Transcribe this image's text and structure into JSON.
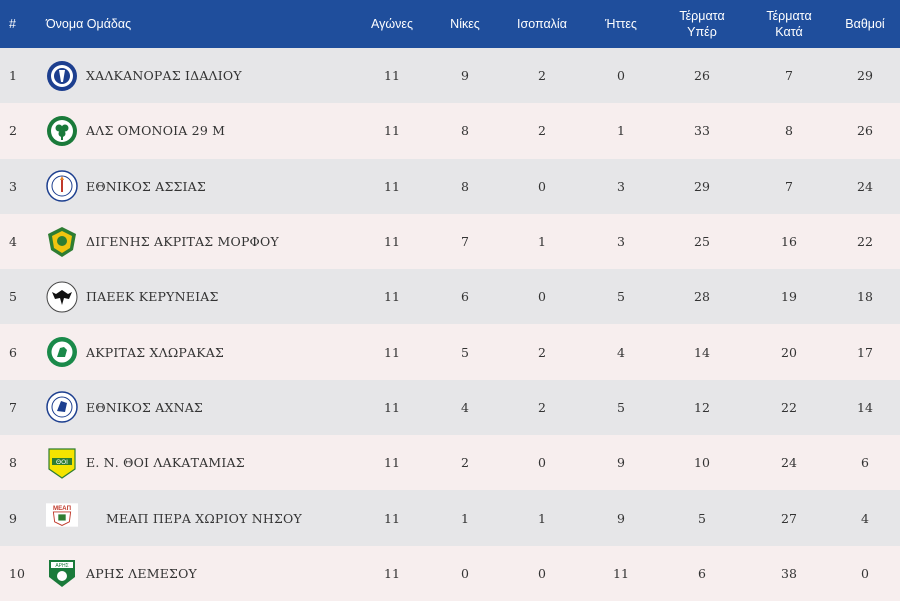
{
  "headers": {
    "rank": "#",
    "team": "Όνομα Ομάδας",
    "played": "Αγώνες",
    "wins": "Νίκες",
    "draws": "Ισοπαλία",
    "losses": "Ήττες",
    "goals_for_1": "Τέρματα",
    "goals_for_2": "Υπέρ",
    "goals_against_1": "Τέρματα",
    "goals_against_2": "Κατά",
    "points": "Βαθμοί"
  },
  "rows": [
    {
      "rank": "1",
      "team": "ΧΑΛΚΑΝΟΡΑΣ ΙΔΑΛΙΟΥ",
      "played": "11",
      "wins": "9",
      "draws": "2",
      "losses": "0",
      "gf": "26",
      "ga": "7",
      "pts": "29",
      "logo": "chalkanoras-logo"
    },
    {
      "rank": "2",
      "team": "ΑΛΣ ΟΜΟΝΟΙΑ 29 Μ",
      "played": "11",
      "wins": "8",
      "draws": "2",
      "losses": "1",
      "gf": "33",
      "ga": "8",
      "pts": "26",
      "logo": "omonoia-logo"
    },
    {
      "rank": "3",
      "team": "ΕΘΝΙΚΟΣ ΑΣΣΙΑΣ",
      "played": "11",
      "wins": "8",
      "draws": "0",
      "losses": "3",
      "gf": "29",
      "ga": "7",
      "pts": "24",
      "logo": "ethnikos-assias-logo"
    },
    {
      "rank": "4",
      "team": "ΔΙΓΕΝΗΣ ΑΚΡΙΤΑΣ ΜΟΡΦΟΥ",
      "played": "11",
      "wins": "7",
      "draws": "1",
      "losses": "3",
      "gf": "25",
      "ga": "16",
      "pts": "22",
      "logo": "digenis-logo"
    },
    {
      "rank": "5",
      "team": "ΠΑΕΕΚ ΚΕΡΥΝΕΙΑΣ",
      "played": "11",
      "wins": "6",
      "draws": "0",
      "losses": "5",
      "gf": "28",
      "ga": "19",
      "pts": "18",
      "logo": "paeek-logo"
    },
    {
      "rank": "6",
      "team": "ΑΚΡΙΤΑΣ ΧΛΩΡΑΚΑΣ",
      "played": "11",
      "wins": "5",
      "draws": "2",
      "losses": "4",
      "gf": "14",
      "ga": "20",
      "pts": "17",
      "logo": "akritas-logo"
    },
    {
      "rank": "7",
      "team": "ΕΘΝΙΚΟΣ ΑΧΝΑΣ",
      "played": "11",
      "wins": "4",
      "draws": "2",
      "losses": "5",
      "gf": "12",
      "ga": "22",
      "pts": "14",
      "logo": "ethnikos-achnas-logo"
    },
    {
      "rank": "8",
      "team": "Ε. Ν. ΘΟΙ ΛΑΚΑΤΑΜΙΑΣ",
      "played": "11",
      "wins": "2",
      "draws": "0",
      "losses": "9",
      "gf": "10",
      "ga": "24",
      "pts": "6",
      "logo": "thoi-logo"
    },
    {
      "rank": "9",
      "team": "ΜΕΑΠ ΠΕΡΑ ΧΩΡΙΟΥ ΝΗΣΟΥ",
      "played": "11",
      "wins": "1",
      "draws": "1",
      "losses": "9",
      "gf": "5",
      "ga": "27",
      "pts": "4",
      "logo": "meap-logo"
    },
    {
      "rank": "10",
      "team": "ΑΡΗΣ ΛΕΜΕΣΟΥ",
      "played": "11",
      "wins": "0",
      "draws": "0",
      "losses": "11",
      "gf": "6",
      "ga": "38",
      "pts": "0",
      "logo": "aris-logo"
    }
  ],
  "logo_text": {
    "meap": "ΜΕΑΠ",
    "thoi": "ΘΟΙ",
    "aris": "ΑΡΗΣ"
  },
  "colors": {
    "header_bg": "#1f4e9c",
    "row_odd": "#e6e6e8",
    "row_even": "#f7eeee",
    "text": "#333333"
  }
}
